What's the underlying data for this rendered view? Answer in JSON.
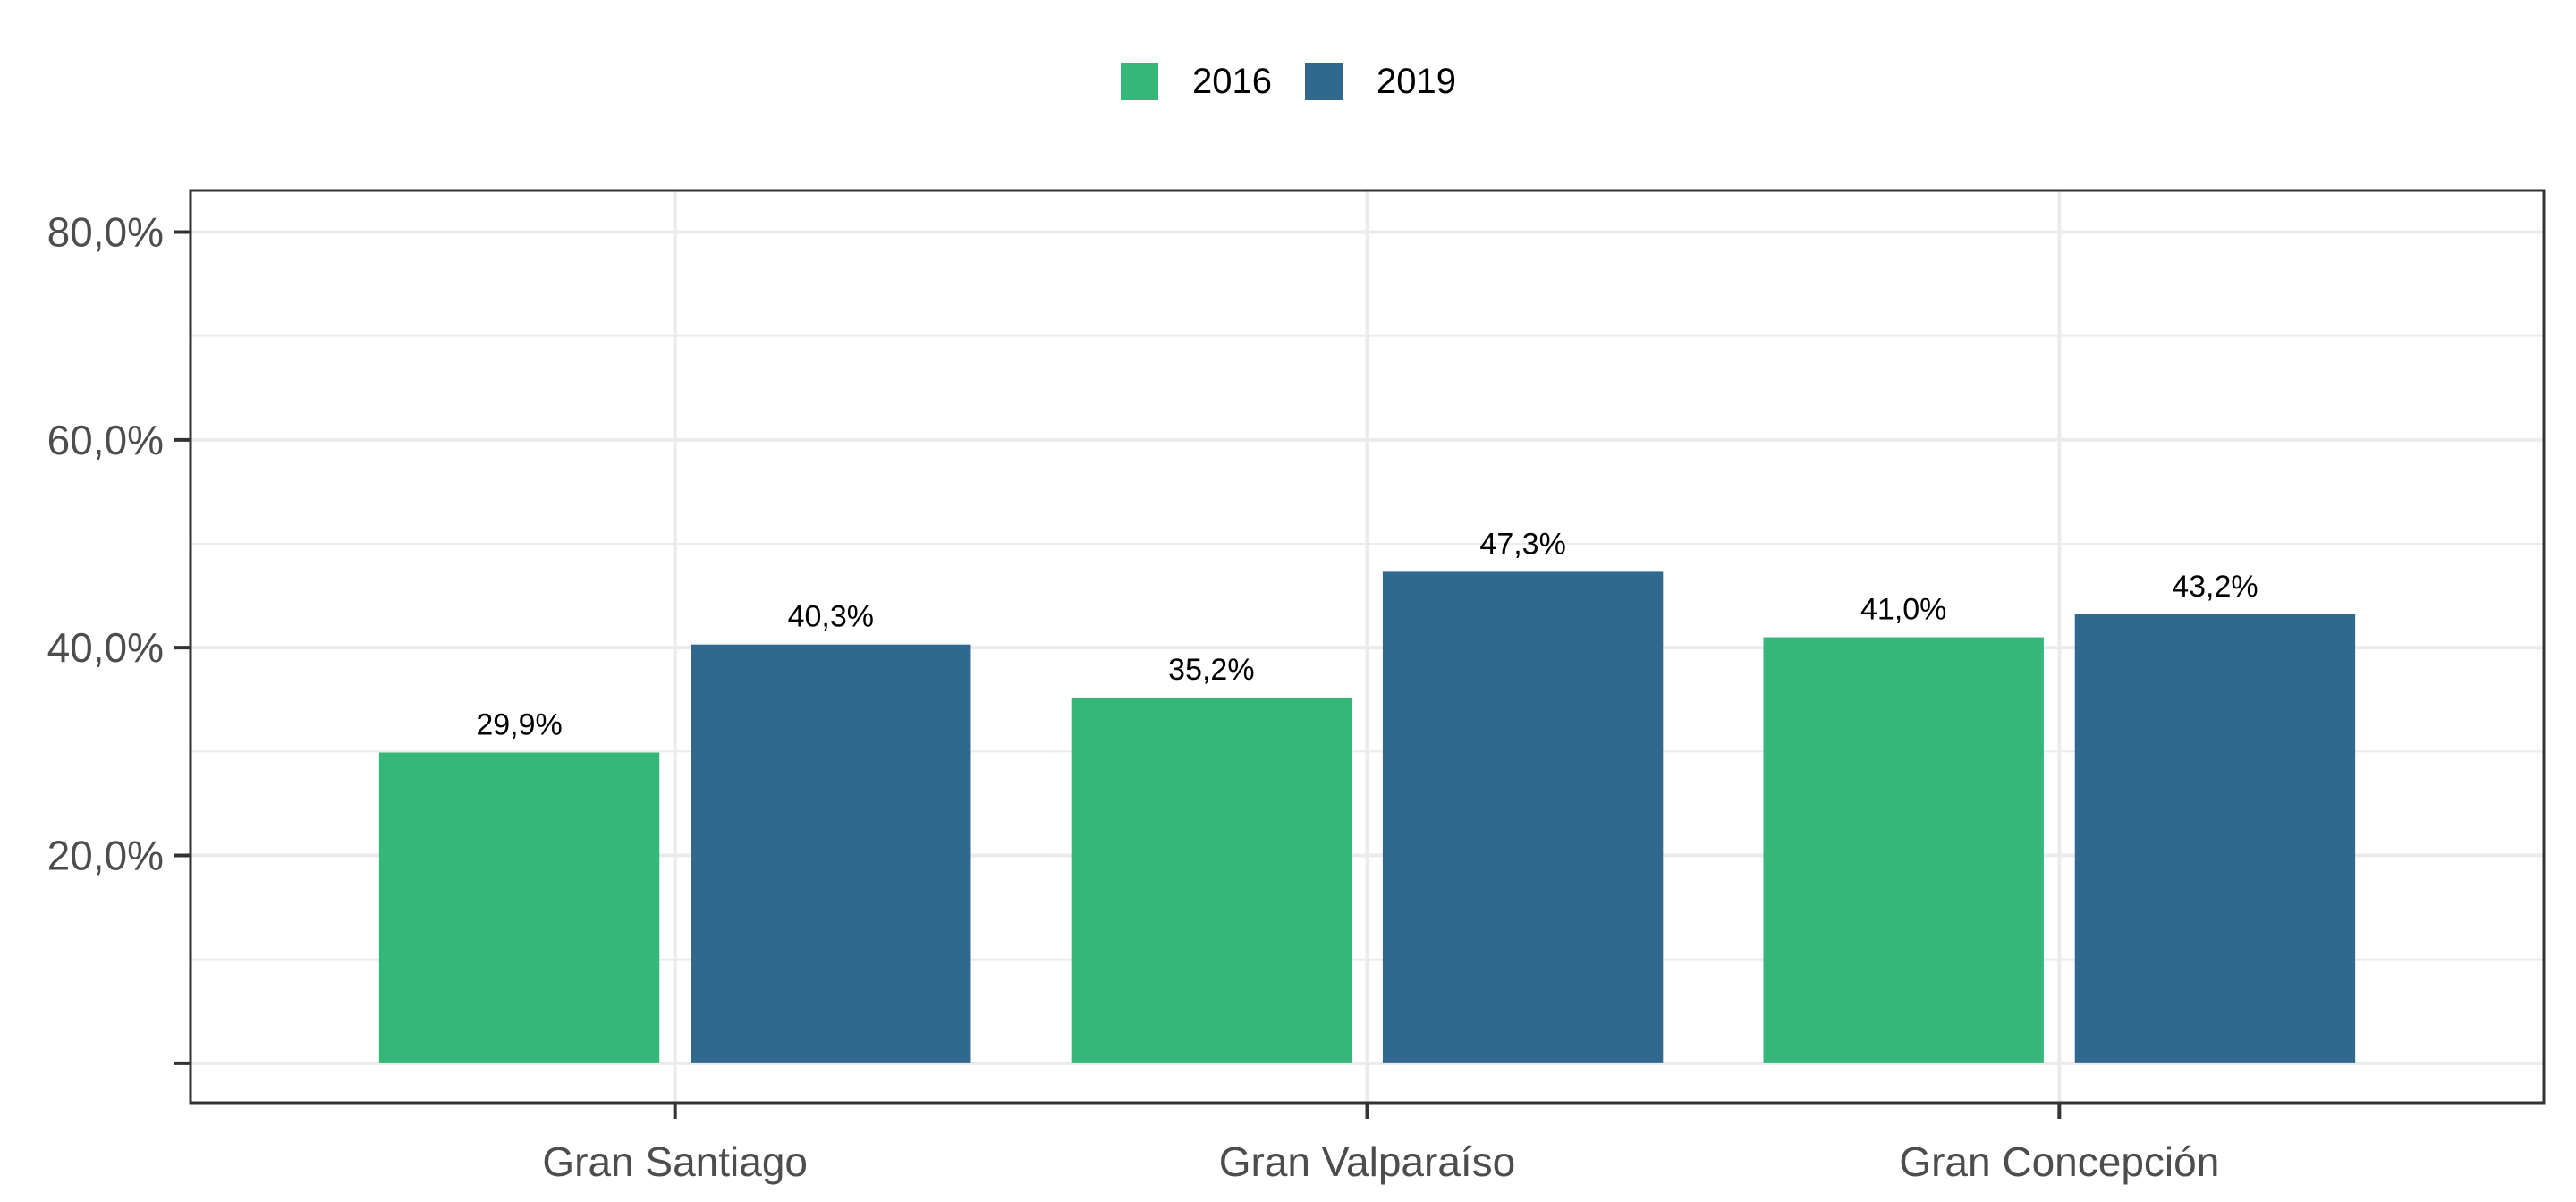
{
  "chart_data": {
    "type": "bar",
    "categories": [
      "Gran Santiago",
      "Gran Valparaíso",
      "Gran Concepción"
    ],
    "series": [
      {
        "name": "2016",
        "values": [
          29.9,
          35.2,
          41.0
        ],
        "labels": [
          "29,9%",
          "35,2%",
          "41,0%"
        ],
        "color": "#35b779"
      },
      {
        "name": "2019",
        "values": [
          40.3,
          47.3,
          43.2
        ],
        "labels": [
          "40,3%",
          "47,3%",
          "43,2%"
        ],
        "color": "#31688e"
      }
    ],
    "ylim": [
      -3.8,
      84
    ],
    "yticks": [
      0,
      20,
      40,
      60,
      80
    ],
    "ytick_labels": [
      "",
      "20,0%",
      "40,0%",
      "60,0%",
      "80,0%"
    ],
    "legend_position": "top",
    "grid": true,
    "title": "",
    "xlabel": "",
    "ylabel": ""
  }
}
